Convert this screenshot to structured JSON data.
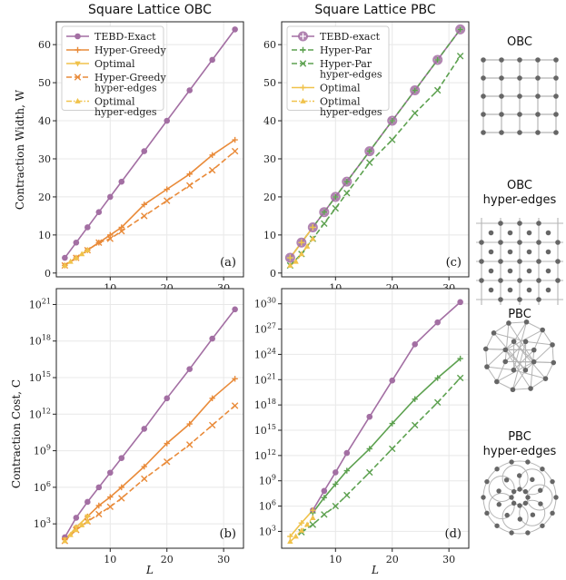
{
  "colors": {
    "purple": "#A36FA3",
    "orange": "#E98B3A",
    "gold": "#F0C24B",
    "green": "#5DA150",
    "frame": "#222222",
    "grid": "#e8e8e8",
    "node": "#666666",
    "edge": "#b5b5b5"
  },
  "column_titles": {
    "left": "Square Lattice OBC",
    "right": "Square Lattice PBC"
  },
  "axis_labels": {
    "width": "Contraction Width, W",
    "cost": "Contraction Cost, C",
    "x": "L"
  },
  "graph_labels": [
    {
      "id": "obc",
      "lines": [
        "OBC"
      ]
    },
    {
      "id": "obc-he",
      "lines": [
        "OBC",
        "hyper-edges"
      ]
    },
    {
      "id": "pbc",
      "lines": [
        "PBC"
      ]
    },
    {
      "id": "pbc-he",
      "lines": [
        "PBC",
        "hyper-edges"
      ]
    }
  ],
  "chart_data": [
    {
      "id": "a",
      "panel_label": "(a)",
      "type": "line",
      "title": "Square Lattice OBC",
      "xlabel": "L",
      "ylabel": "Contraction Width, W",
      "xlim": [
        0.5,
        33.5
      ],
      "ylim": [
        -1,
        66
      ],
      "log_y": false,
      "xticks": [
        10,
        20,
        30
      ],
      "yticks": [
        0,
        10,
        20,
        30,
        40,
        50,
        60
      ],
      "legend_position": "top-left",
      "grid": true,
      "series": [
        {
          "name": "TEBD-Exact",
          "color": "#A36FA3",
          "marker": "circle",
          "dash": "solid",
          "x": [
            2,
            4,
            6,
            8,
            10,
            12,
            16,
            20,
            24,
            28,
            32
          ],
          "y": [
            4,
            8,
            12,
            16,
            20,
            24,
            32,
            40,
            48,
            56,
            64
          ]
        },
        {
          "name": "Hyper-Greedy",
          "color": "#E98B3A",
          "marker": "plus",
          "dash": "solid",
          "x": [
            2,
            4,
            6,
            8,
            10,
            12,
            16,
            20,
            24,
            28,
            32
          ],
          "y": [
            2,
            4,
            6,
            8,
            10,
            12,
            18,
            22,
            26,
            31,
            35
          ]
        },
        {
          "name": "Optimal",
          "color": "#F0C24B",
          "marker": "tri_down",
          "dash": "solid",
          "x": [
            2,
            4,
            6
          ],
          "y": [
            2,
            4,
            6
          ]
        },
        {
          "name": "Hyper-Greedy hyper-edges",
          "color": "#E98B3A",
          "marker": "x",
          "dash": "dashed",
          "x": [
            2,
            4,
            6,
            8,
            10,
            12,
            16,
            20,
            24,
            28,
            32
          ],
          "y": [
            2,
            4,
            6,
            8,
            9,
            11,
            15,
            19,
            23,
            27,
            32
          ]
        },
        {
          "name": "Optimal hyper-edges",
          "color": "#F0C24B",
          "marker": "tri_up",
          "dash": "dashdot",
          "x": [
            2,
            3,
            4,
            5,
            6
          ],
          "y": [
            2,
            3,
            4,
            5,
            6
          ]
        }
      ],
      "legend": [
        [
          "TEBD-Exact"
        ],
        [
          "Hyper-Greedy"
        ],
        [
          "Optimal"
        ],
        [
          "Hyper-Greedy",
          "hyper-edges"
        ],
        [
          "Optimal",
          "hyper-edges"
        ]
      ]
    },
    {
      "id": "c",
      "panel_label": "(c)",
      "type": "line",
      "title": "Square Lattice PBC",
      "xlabel": "L",
      "ylabel": "",
      "xlim": [
        0.5,
        33.5
      ],
      "ylim": [
        -1,
        66
      ],
      "log_y": false,
      "xticks": [
        10,
        20,
        30
      ],
      "yticks": [
        0,
        10,
        20,
        30,
        40,
        50,
        60
      ],
      "legend_position": "top-left",
      "grid": true,
      "series": [
        {
          "name": "TEBD-exact",
          "color": "#A36FA3",
          "marker": "bigcircle",
          "dash": "solid",
          "x": [
            2,
            4,
            6,
            8,
            10,
            12,
            16,
            20,
            24,
            28,
            32
          ],
          "y": [
            4,
            8,
            12,
            16,
            20,
            24,
            32,
            40,
            48,
            56,
            64
          ]
        },
        {
          "name": "Hyper-Par",
          "color": "#5DA150",
          "marker": "plus",
          "dash": "dashed",
          "x": [
            2,
            4,
            6,
            8,
            10,
            12,
            16,
            20,
            24,
            28,
            32
          ],
          "y": [
            4,
            8,
            12,
            16,
            20,
            24,
            32,
            40,
            48,
            56,
            64
          ]
        },
        {
          "name": "Hyper-Par hyper-edges",
          "color": "#5DA150",
          "marker": "x",
          "dash": "dashed",
          "x": [
            2,
            4,
            6,
            8,
            10,
            12,
            16,
            20,
            24,
            28,
            32
          ],
          "y": [
            2,
            5,
            9,
            13,
            17,
            21,
            29,
            35,
            42,
            48,
            57
          ]
        },
        {
          "name": "Optimal",
          "color": "#F0C24B",
          "marker": "plus",
          "dash": "solid",
          "x": [
            2,
            4,
            6
          ],
          "y": [
            4,
            8,
            12
          ]
        },
        {
          "name": "Optimal hyper-edges",
          "color": "#F0C24B",
          "marker": "tri_up",
          "dash": "dashdot",
          "x": [
            2,
            3,
            4,
            5,
            6
          ],
          "y": [
            2,
            3,
            5,
            7,
            9
          ]
        }
      ],
      "legend": [
        [
          "TEBD-exact"
        ],
        [
          "Hyper-Par"
        ],
        [
          "Hyper-Par",
          "hyper-edges"
        ],
        [
          "Optimal"
        ],
        [
          "Optimal",
          "hyper-edges"
        ]
      ]
    },
    {
      "id": "b",
      "panel_label": "(b)",
      "type": "line",
      "title": "",
      "xlabel": "L",
      "ylabel": "Contraction Cost, C",
      "xlim": [
        0.5,
        33.5
      ],
      "ylim": [
        1,
        22.3
      ],
      "log_y": true,
      "xticks": [
        10,
        20,
        30
      ],
      "yticks": [
        3,
        6,
        9,
        12,
        15,
        18,
        21
      ],
      "grid": true,
      "series": [
        {
          "name": "TEBD-Exact",
          "color": "#A36FA3",
          "marker": "circle",
          "dash": "solid",
          "x": [
            2,
            4,
            6,
            8,
            10,
            12,
            16,
            20,
            24,
            28,
            32
          ],
          "y": [
            1.9,
            3.5,
            4.8,
            6.0,
            7.2,
            8.4,
            10.8,
            13.3,
            15.7,
            18.2,
            20.6
          ]
        },
        {
          "name": "Hyper-Greedy",
          "color": "#E98B3A",
          "marker": "plus",
          "dash": "solid",
          "x": [
            2,
            4,
            6,
            8,
            10,
            12,
            16,
            20,
            24,
            28,
            32
          ],
          "y": [
            1.7,
            2.7,
            3.6,
            4.5,
            5.2,
            6.0,
            7.7,
            9.6,
            11.2,
            13.3,
            14.9
          ]
        },
        {
          "name": "Optimal",
          "color": "#F0C24B",
          "marker": "tri_down",
          "dash": "solid",
          "x": [
            2,
            4,
            6
          ],
          "y": [
            1.7,
            2.7,
            3.6
          ]
        },
        {
          "name": "Hyper-Greedy hyper-edges",
          "color": "#E98B3A",
          "marker": "x",
          "dash": "dashed",
          "x": [
            2,
            4,
            6,
            8,
            10,
            12,
            16,
            20,
            24,
            28,
            32
          ],
          "y": [
            1.6,
            2.5,
            3.2,
            3.8,
            4.4,
            5.1,
            6.7,
            8.1,
            9.5,
            11.1,
            12.7
          ]
        },
        {
          "name": "Optimal hyper-edges",
          "color": "#F0C24B",
          "marker": "tri_up",
          "dash": "dashdot",
          "x": [
            2,
            3,
            4,
            5,
            6
          ],
          "y": [
            1.6,
            2.1,
            2.5,
            2.9,
            3.2
          ]
        }
      ]
    },
    {
      "id": "d",
      "panel_label": "(d)",
      "type": "line",
      "title": "",
      "xlabel": "L",
      "ylabel": "",
      "xlim": [
        0.5,
        33.5
      ],
      "ylim": [
        1,
        31.8
      ],
      "log_y": true,
      "xticks": [
        10,
        20,
        30
      ],
      "yticks": [
        3,
        6,
        9,
        12,
        15,
        18,
        21,
        24,
        27,
        30
      ],
      "grid": true,
      "series": [
        {
          "name": "TEBD-exact",
          "color": "#A36FA3",
          "marker": "circle",
          "dash": "solid",
          "x": [
            6,
            8,
            10,
            12,
            16,
            20,
            24,
            28,
            32
          ],
          "y": [
            5.5,
            7.8,
            10.0,
            12.3,
            16.6,
            20.9,
            25.2,
            27.8,
            30.2
          ]
        },
        {
          "name": "Hyper-Par",
          "color": "#5DA150",
          "marker": "plus",
          "dash": "solid",
          "x": [
            6,
            8,
            10,
            12,
            16,
            20,
            24,
            28,
            32
          ],
          "y": [
            5.2,
            7.0,
            8.6,
            10.2,
            12.8,
            15.8,
            18.7,
            21.2,
            23.5
          ]
        },
        {
          "name": "Hyper-Par hyper-edges",
          "color": "#5DA150",
          "marker": "x",
          "dash": "dashed",
          "x": [
            4,
            6,
            8,
            10,
            12,
            16,
            20,
            24,
            28,
            32
          ],
          "y": [
            2.9,
            3.8,
            5.0,
            6.0,
            7.3,
            10.0,
            12.8,
            15.6,
            18.3,
            21.2
          ]
        },
        {
          "name": "Optimal",
          "color": "#F0C24B",
          "marker": "plus",
          "dash": "solid",
          "x": [
            2,
            4,
            6
          ],
          "y": [
            2.4,
            4.0,
            5.5
          ]
        },
        {
          "name": "Optimal hyper-edges",
          "color": "#F0C24B",
          "marker": "tri_up",
          "dash": "dashdot",
          "x": [
            2,
            3,
            4,
            5,
            6
          ],
          "y": [
            1.8,
            2.4,
            3.1,
            3.8,
            4.6
          ]
        }
      ]
    }
  ]
}
